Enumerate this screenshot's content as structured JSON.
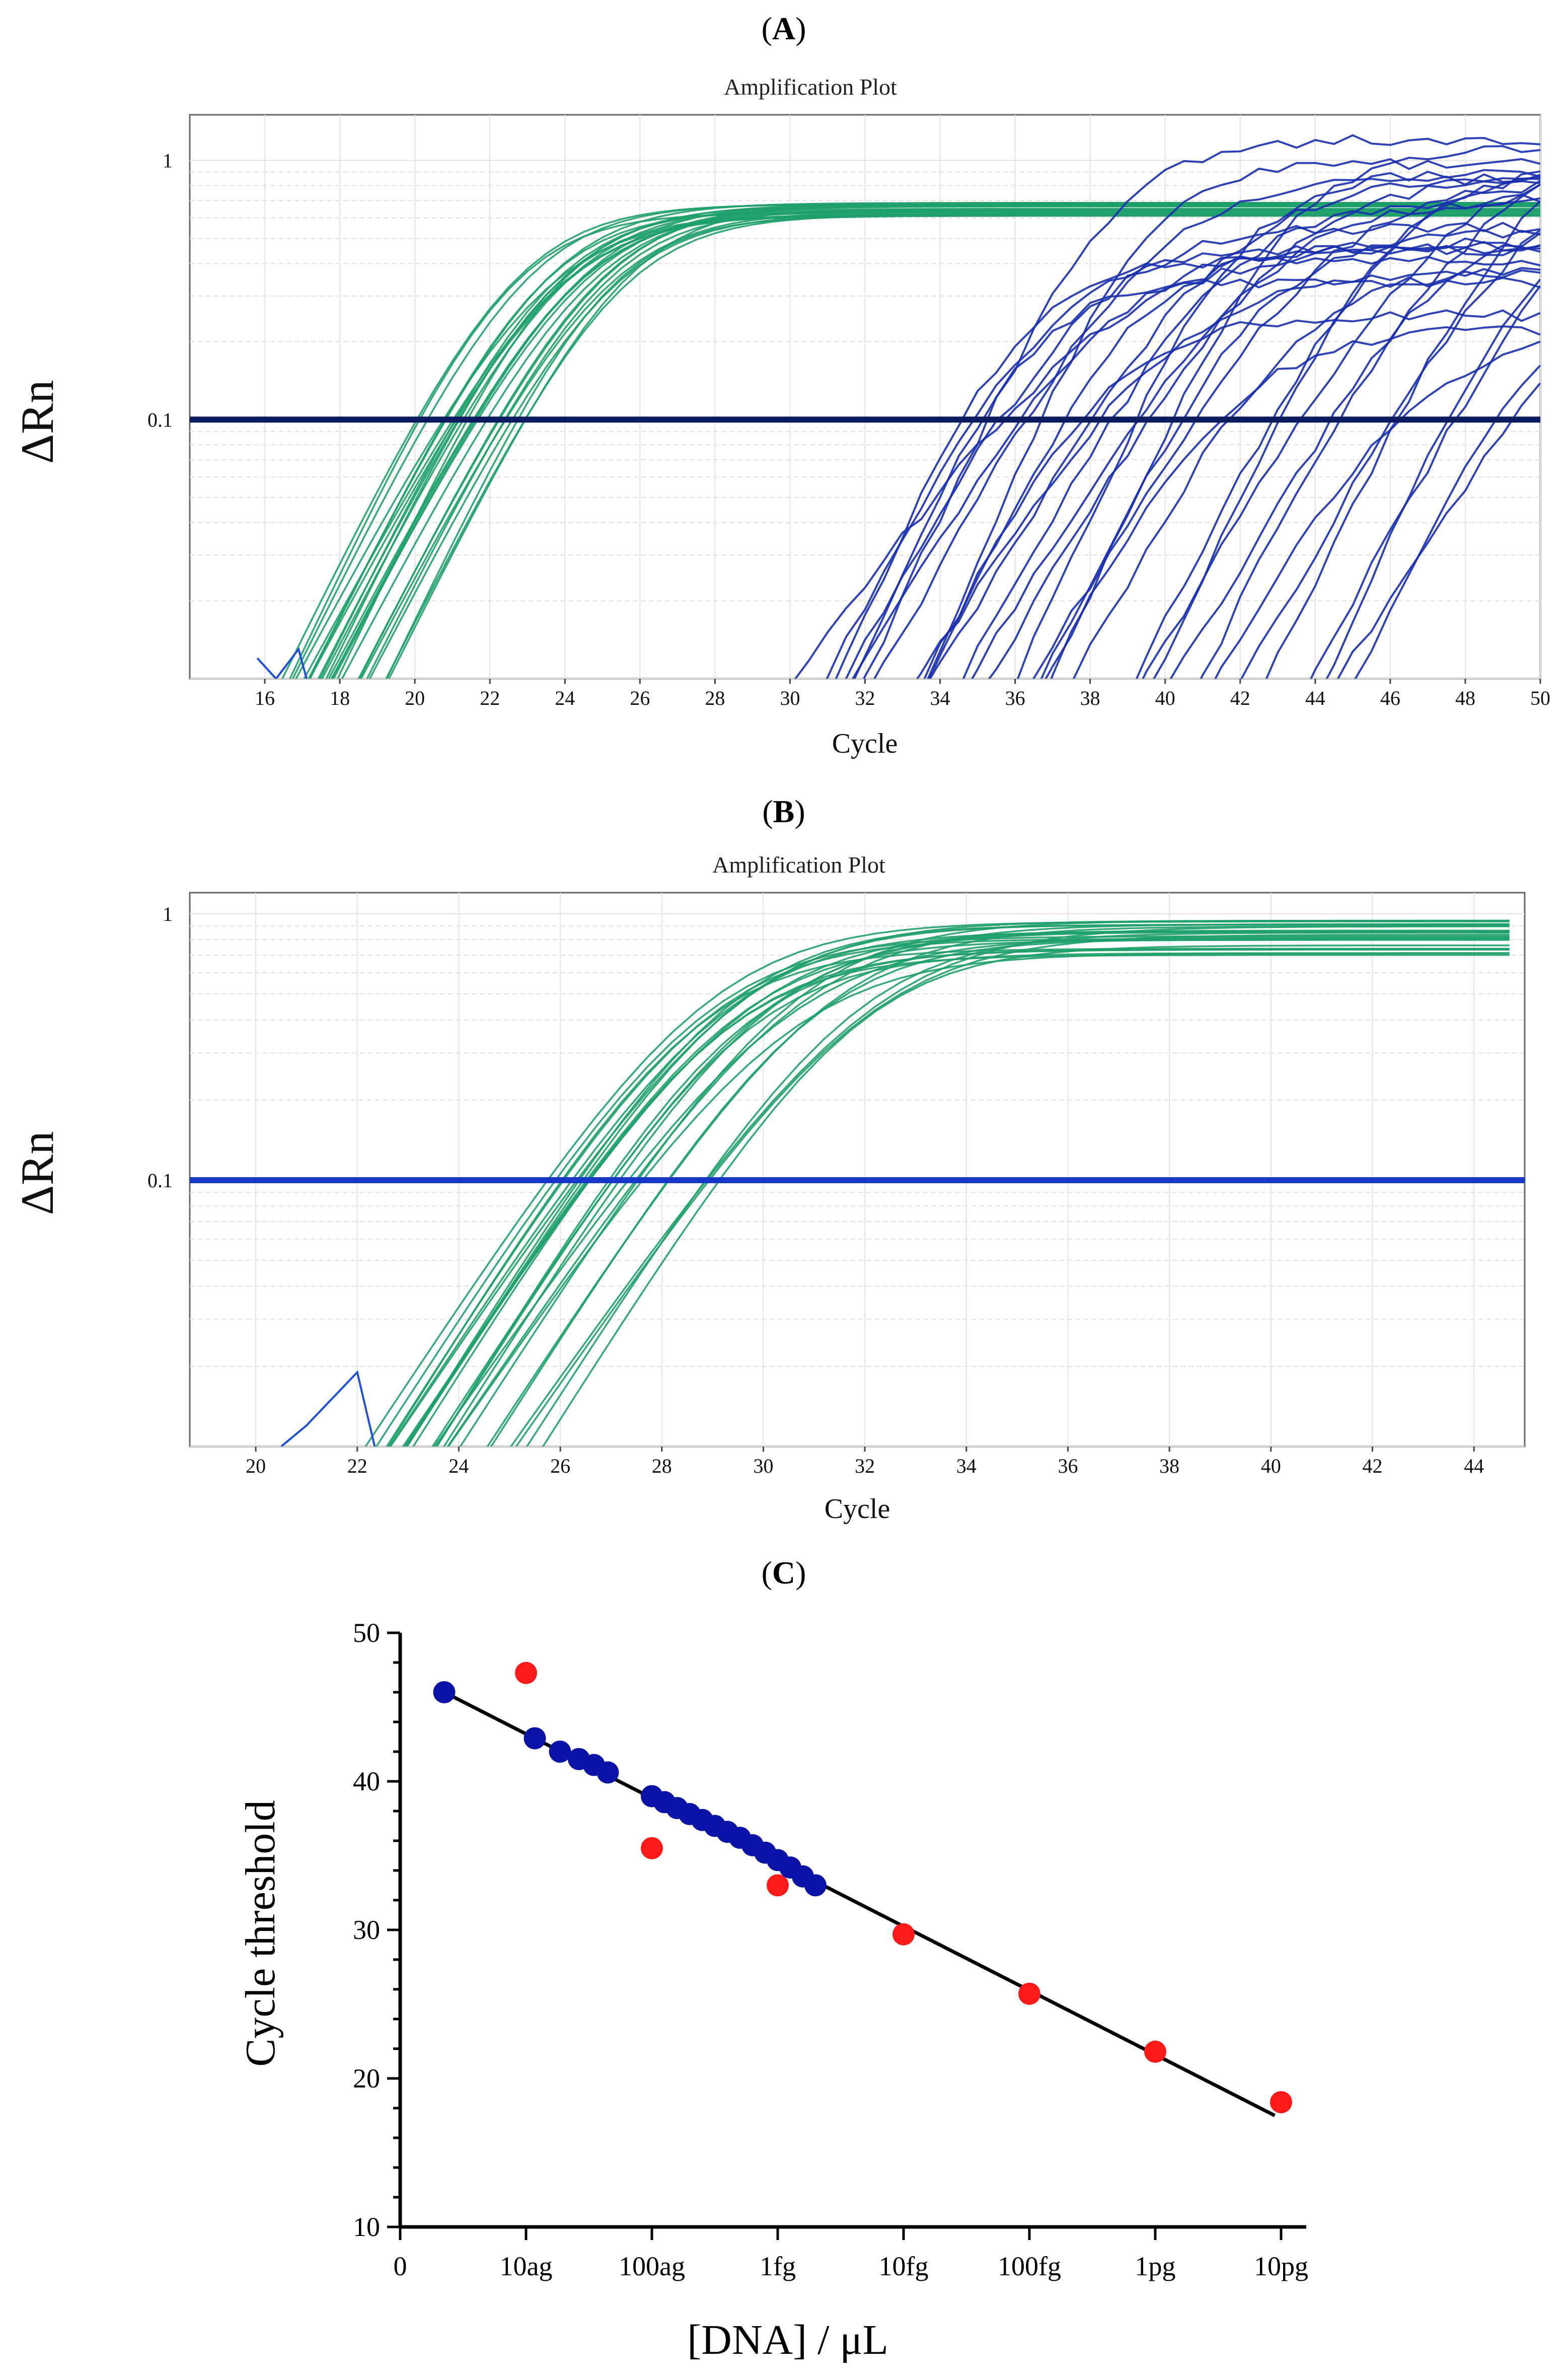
{
  "chart_data": [
    {
      "panel": "A",
      "panel_label_open": "(",
      "panel_letter": "A",
      "panel_label_close": ")",
      "type": "line",
      "title": "Amplification Plot",
      "xlabel": "Cycle",
      "ylabel": "ΔRn",
      "yscale": "log",
      "xlim": [
        14,
        50
      ],
      "ylim": [
        0.01,
        1.5
      ],
      "xticks": [
        16,
        18,
        20,
        22,
        24,
        26,
        28,
        30,
        32,
        34,
        36,
        38,
        40,
        42,
        44,
        46,
        48,
        50
      ],
      "yticks": [
        {
          "value": 0.1,
          "label": "0.1"
        },
        {
          "value": 1,
          "label": "1"
        }
      ],
      "threshold": 0.1,
      "threshold_color": "#0c1a5e",
      "series_groups": [
        {
          "name": "positive (green)",
          "color": "#1fa06a",
          "count": 26,
          "ct_range": [
            19.5,
            23.0
          ],
          "plateau": 0.66
        },
        {
          "name": "late (blue)",
          "color": "#1a2fae",
          "count": 34,
          "ct_range": [
            34.5,
            50.0
          ],
          "plateau_range": [
            0.2,
            1.25
          ]
        }
      ],
      "baseline_noise": {
        "color": "#1f4fd6",
        "x": [
          15.8,
          16.3,
          16.9,
          17.2
        ],
        "y": [
          0.012,
          0.01,
          0.013,
          0.009
        ]
      }
    },
    {
      "panel": "B",
      "panel_label_open": "(",
      "panel_letter": "B",
      "panel_label_close": ")",
      "type": "line",
      "title": "Amplification Plot",
      "xlabel": "Cycle",
      "ylabel": "ΔRn",
      "yscale": "log",
      "xlim": [
        18.7,
        45
      ],
      "ylim": [
        0.01,
        1.2
      ],
      "xticks": [
        20,
        22,
        24,
        26,
        28,
        30,
        32,
        34,
        36,
        38,
        40,
        42,
        44
      ],
      "yticks": [
        {
          "value": 0.1,
          "label": "0.1"
        },
        {
          "value": 1,
          "label": "1"
        }
      ],
      "threshold": 0.1,
      "threshold_color": "#1737c9",
      "series_groups": [
        {
          "name": "positive (green)",
          "color": "#1fa06a",
          "count": 26,
          "ct_range": [
            25.7,
            29.3
          ],
          "plateau_range": [
            0.7,
            0.95
          ]
        }
      ],
      "baseline_noise": {
        "color": "#1f4fd6",
        "x": [
          20.5,
          21.0,
          22.0,
          22.4
        ],
        "y": [
          0.01,
          0.012,
          0.019,
          0.009
        ]
      }
    },
    {
      "panel": "C",
      "panel_label_open": "(",
      "panel_letter": "C",
      "panel_label_close": ")",
      "type": "scatter",
      "xlabel": "[DNA] / μL",
      "ylabel": "Cycle threshold",
      "xlim": [
        0,
        7.2
      ],
      "ylim": [
        10,
        50
      ],
      "xticks": [
        {
          "value": 0,
          "label": "0"
        },
        {
          "value": 1,
          "label": "10ag"
        },
        {
          "value": 2,
          "label": "100ag"
        },
        {
          "value": 3,
          "label": "1fg"
        },
        {
          "value": 4,
          "label": "10fg"
        },
        {
          "value": 5,
          "label": "100fg"
        },
        {
          "value": 6,
          "label": "1pg"
        },
        {
          "value": 7,
          "label": "10pg"
        }
      ],
      "yticks": [
        10,
        20,
        30,
        40,
        50
      ],
      "fit_line": {
        "x": [
          0.35,
          6.95
        ],
        "y": [
          46.0,
          17.5
        ],
        "color": "#000000"
      },
      "series": [
        {
          "name": "red points",
          "color": "#ff1a1a",
          "x": [
            1.0,
            2.0,
            3.0,
            4.0,
            5.0,
            6.0,
            7.0
          ],
          "y": [
            47.3,
            35.5,
            33.0,
            29.7,
            25.7,
            21.8,
            18.4
          ]
        },
        {
          "name": "blue points",
          "color": "#0a13a6",
          "x": [
            0.35,
            1.07,
            1.27,
            1.42,
            1.54,
            1.65,
            2.0,
            2.1,
            2.2,
            2.3,
            2.4,
            2.5,
            2.6,
            2.7,
            2.8,
            2.9,
            3.0,
            3.1,
            3.2,
            3.3
          ],
          "y": [
            46.0,
            42.9,
            42.0,
            41.5,
            41.1,
            40.6,
            39.0,
            38.6,
            38.2,
            37.8,
            37.4,
            37.0,
            36.6,
            36.2,
            35.7,
            35.2,
            34.7,
            34.2,
            33.6,
            33.0
          ]
        }
      ]
    }
  ]
}
